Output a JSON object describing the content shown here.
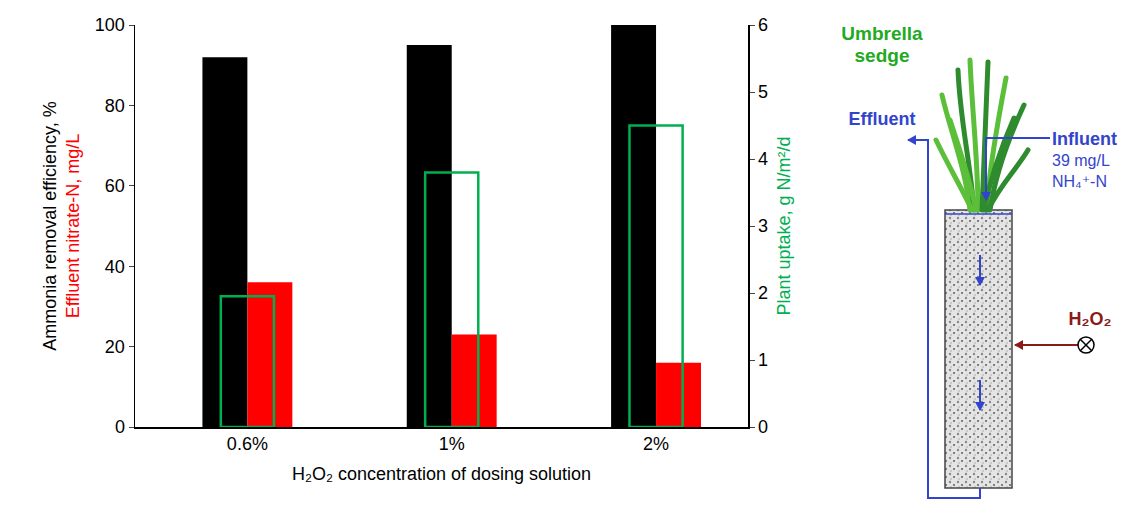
{
  "chart_data": {
    "type": "bar",
    "x_title": "H₂O₂ concentration of dosing solution",
    "categories": [
      "0.6%",
      "1%",
      "2%"
    ],
    "series": [
      {
        "name": "Ammonia removal efficiency, %",
        "color": "#000000",
        "values": [
          92,
          95,
          100
        ]
      },
      {
        "name": "Effluent nitrate-N, mg/L",
        "color": "#ff0000",
        "values": [
          36,
          23,
          16
        ]
      },
      {
        "name": "Plant uptake, g N/m²/d",
        "color": "#00b050",
        "values": [
          1.95,
          3.8,
          4.5
        ],
        "axis": "y2",
        "marker": "outline"
      }
    ],
    "ylim": [
      0,
      100
    ],
    "yticks": [
      0,
      20,
      40,
      60,
      80,
      100
    ],
    "y2lim": [
      0,
      6
    ],
    "y2ticks": [
      0,
      1,
      2,
      3,
      4,
      5,
      6
    ],
    "grid": false
  },
  "diagram": {
    "plant_label": "Umbrella sedge",
    "influent_lines": [
      "Influent",
      "39 mg/L",
      "NH₄⁺-N"
    ],
    "effluent_label": "Effluent",
    "dosing_label": "H₂O₂"
  }
}
